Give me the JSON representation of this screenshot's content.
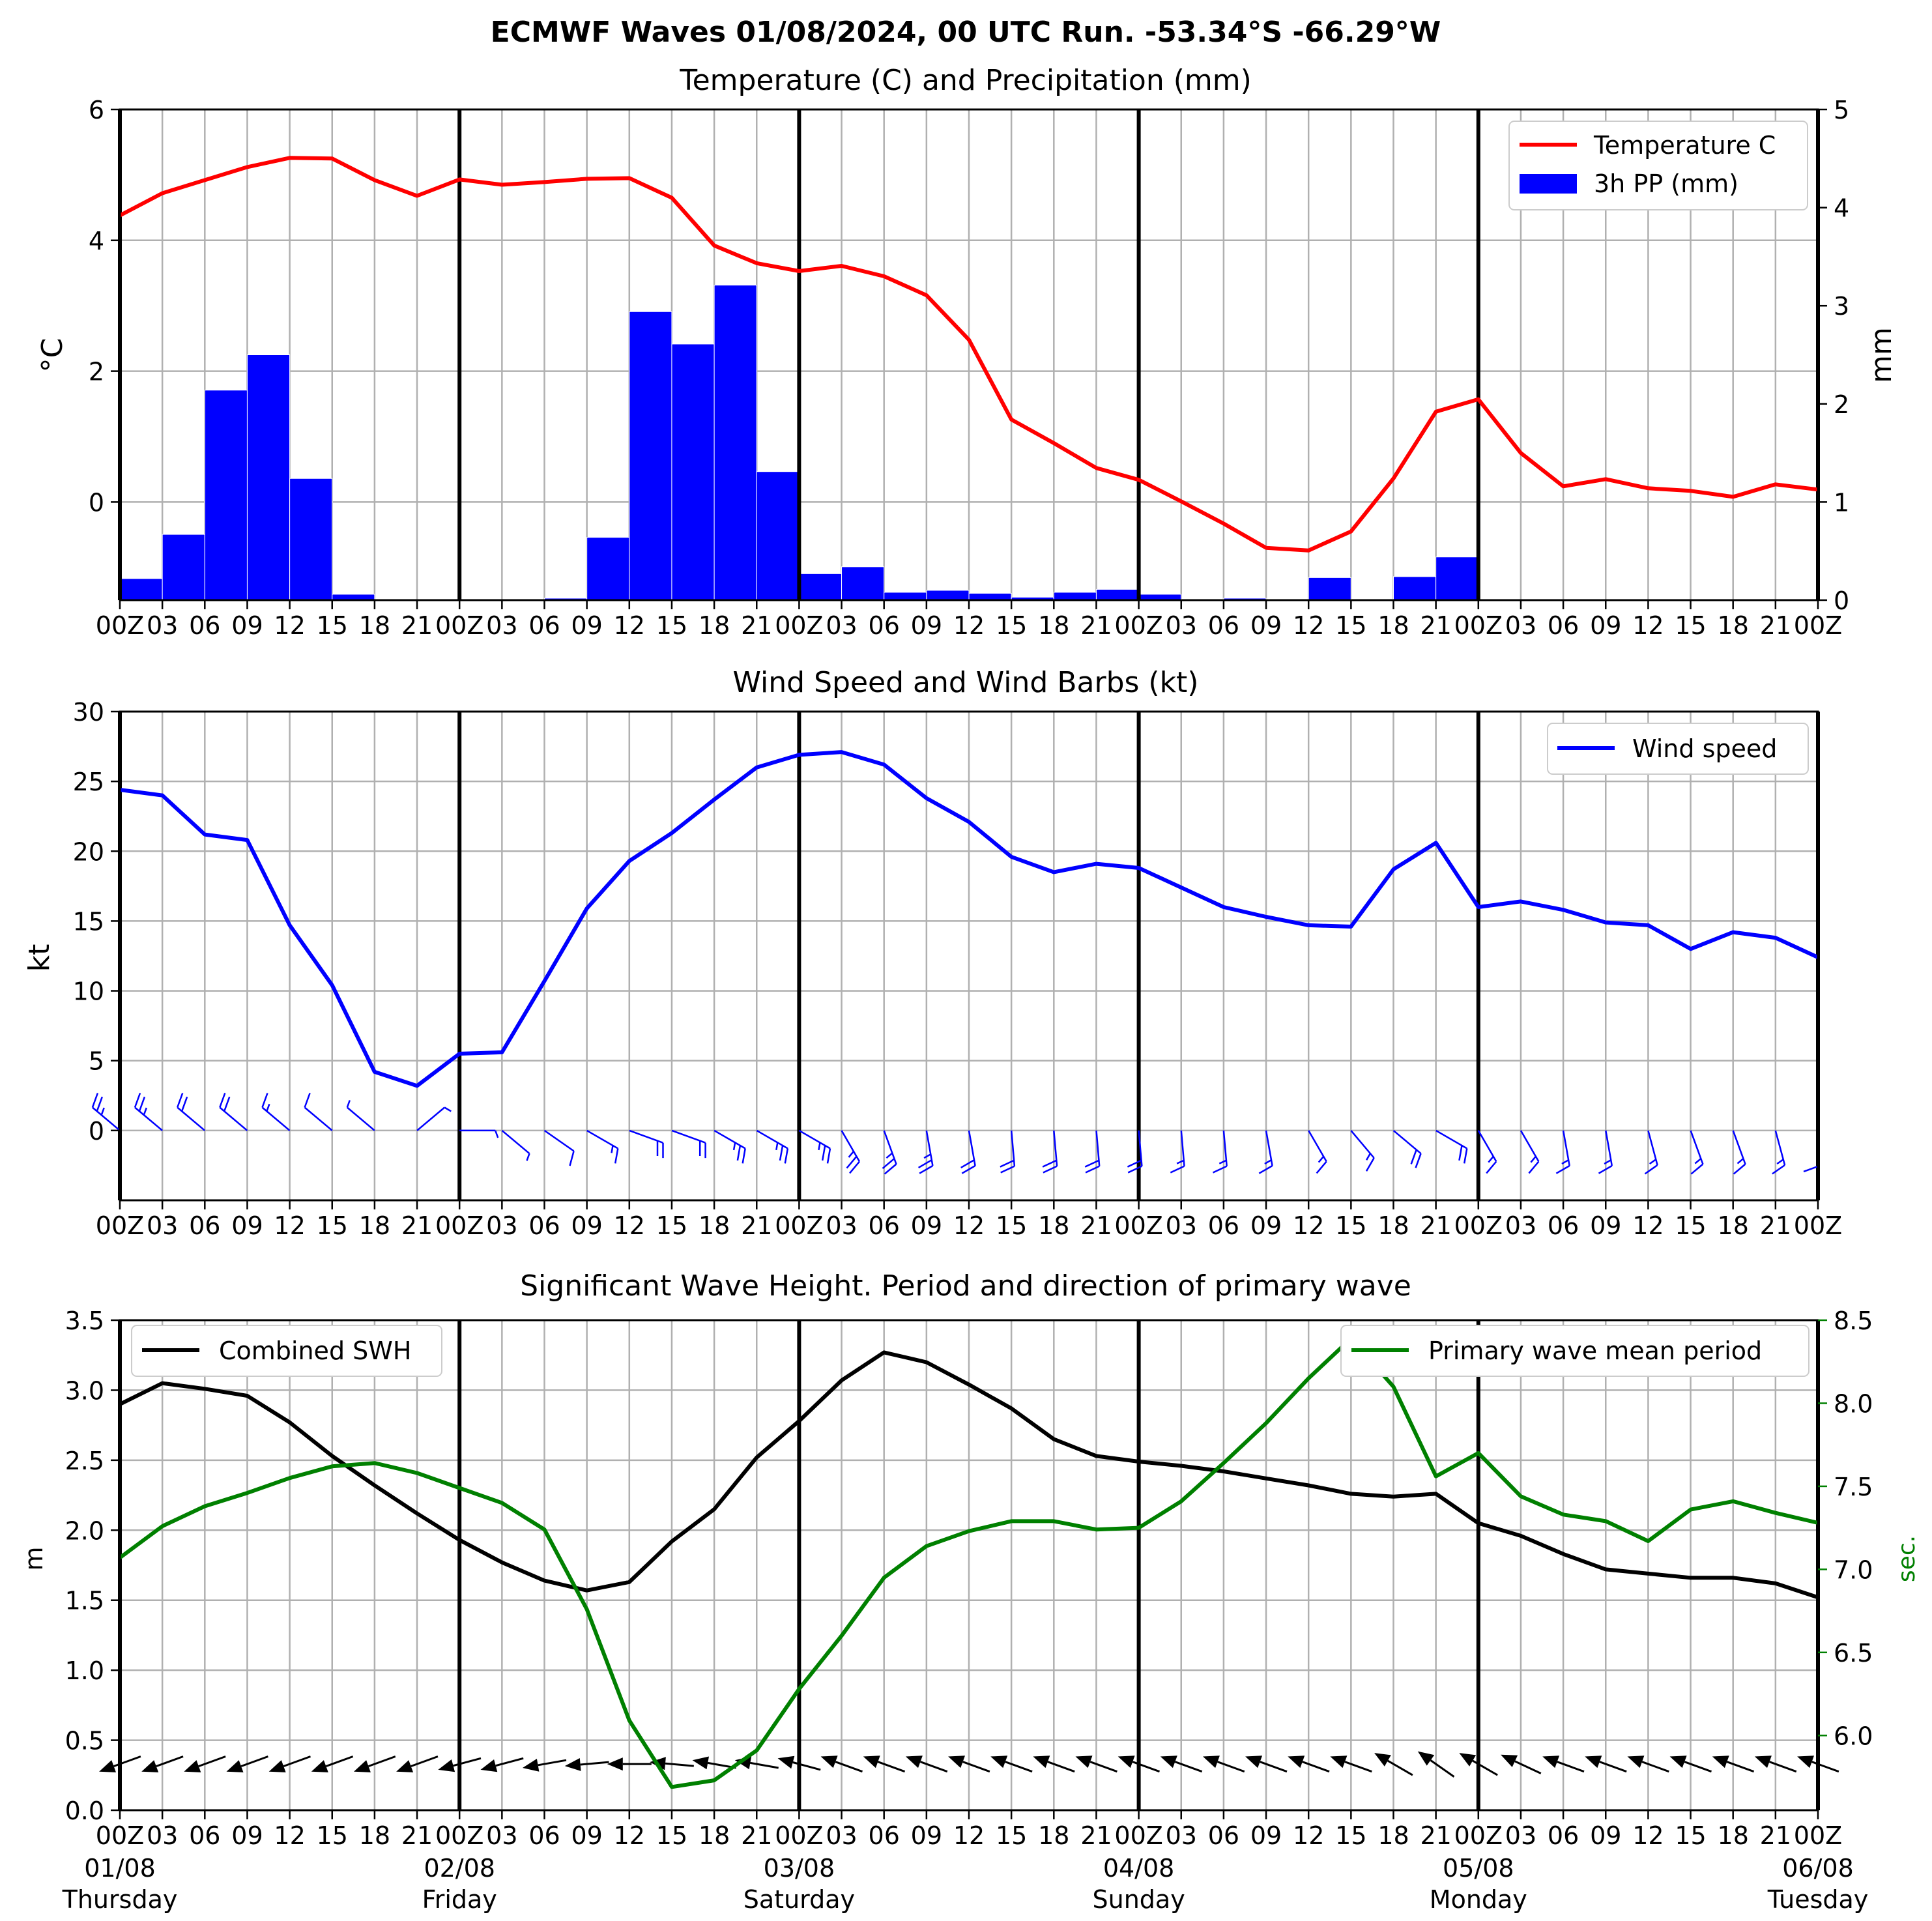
{
  "suptitle": "ECMWF Waves 01/08/2024, 00 UTC Run. -53.34°S -66.29°W",
  "time_tick_labels": [
    "00Z",
    "03",
    "06",
    "09",
    "12",
    "15",
    "18",
    "21",
    "00Z",
    "03",
    "06",
    "09",
    "12",
    "15",
    "18",
    "21",
    "00Z",
    "03",
    "06",
    "09",
    "12",
    "15",
    "18",
    "21",
    "00Z",
    "03",
    "06",
    "09",
    "12",
    "15",
    "18",
    "21",
    "00Z",
    "03",
    "06",
    "09",
    "12",
    "15",
    "18",
    "21",
    "00Z"
  ],
  "date_labels": [
    {
      "date": "01/08",
      "day": "Thursday",
      "index": 0
    },
    {
      "date": "02/08",
      "day": "Friday",
      "index": 8
    },
    {
      "date": "03/08",
      "day": "Saturday",
      "index": 16
    },
    {
      "date": "04/08",
      "day": "Sunday",
      "index": 24
    },
    {
      "date": "05/08",
      "day": "Monday",
      "index": 32
    },
    {
      "date": "06/08",
      "day": "Tuesday",
      "index": 40
    }
  ],
  "colors": {
    "temperature": "#ff0000",
    "precipitation": "#0000ff",
    "wind": "#0000ff",
    "swh": "#000000",
    "period": "#008000",
    "grid": "#b0b0b0"
  },
  "chart_data": [
    {
      "type": "line",
      "title": "Temperature (C) and Precipitation (mm)",
      "x_index": "3-hourly steps from 01/08 00Z to 06/08 00Z (41 points)",
      "ylabel": "°C",
      "ylabel_right": "mm",
      "ylim": [
        -1.5,
        6
      ],
      "yticks": [
        0,
        2,
        4,
        6
      ],
      "ylim_right": [
        0,
        5
      ],
      "yticks_right": [
        0,
        1,
        2,
        3,
        4,
        5
      ],
      "legend": "top-right",
      "grid": true,
      "series": [
        {
          "name": "Temperature C",
          "axis": "left",
          "values": [
            4.38,
            4.72,
            4.92,
            5.12,
            5.26,
            5.25,
            4.92,
            4.68,
            4.93,
            4.85,
            4.89,
            4.94,
            4.95,
            4.65,
            3.92,
            3.65,
            3.53,
            3.61,
            3.45,
            3.16,
            2.48,
            1.26,
            0.9,
            0.52,
            0.34,
            0.01,
            -0.33,
            -0.7,
            -0.74,
            -0.45,
            0.36,
            1.38,
            1.57,
            0.75,
            0.24,
            0.35,
            0.21,
            0.17,
            0.08,
            0.27,
            0.19
          ]
        },
        {
          "name": "3h PP (mm)",
          "axis": "right",
          "type": "bar",
          "values": [
            0.22,
            0.67,
            2.14,
            2.5,
            1.24,
            0.06,
            0,
            0,
            0,
            0,
            0.02,
            0.64,
            2.94,
            2.61,
            3.21,
            1.31,
            0.27,
            0.34,
            0.08,
            0.1,
            0.07,
            0.03,
            0.08,
            0.11,
            0.06,
            0.01,
            0.02,
            0,
            0.23,
            0.01,
            0.24,
            0.44,
            0,
            0,
            0,
            0,
            0,
            0,
            0,
            0
          ]
        }
      ]
    },
    {
      "type": "line",
      "title": "Wind Speed and Wind Barbs (kt)",
      "ylabel": "kt",
      "ylim": [
        -5,
        30
      ],
      "yticks": [
        0,
        5,
        10,
        15,
        20,
        25,
        30
      ],
      "legend": "top-right",
      "grid": true,
      "series": [
        {
          "name": "Wind speed",
          "values": [
            24.4,
            24.0,
            21.2,
            20.8,
            14.7,
            10.4,
            4.2,
            3.2,
            5.5,
            5.6,
            10.7,
            15.9,
            19.3,
            21.3,
            23.7,
            26.0,
            26.9,
            27.1,
            26.2,
            23.8,
            22.1,
            19.6,
            18.5,
            19.1,
            18.8,
            17.4,
            16.0,
            15.3,
            14.7,
            14.6,
            18.7,
            20.6,
            16.0,
            16.4,
            15.8,
            14.9,
            14.7,
            13.0,
            14.2,
            13.8,
            12.4
          ]
        }
      ],
      "barb_direction_deg": [
        310,
        310,
        310,
        310,
        310,
        310,
        310,
        50,
        90,
        130,
        125,
        120,
        110,
        110,
        120,
        120,
        120,
        150,
        160,
        170,
        170,
        175,
        175,
        175,
        175,
        175,
        175,
        170,
        150,
        140,
        130,
        120,
        150,
        150,
        170,
        170,
        165,
        160,
        160,
        165,
        180
      ]
    },
    {
      "type": "line",
      "title": "Significant Wave Height. Period and direction of primary wave",
      "ylabel": "m",
      "ylabel_right": "sec.",
      "ylim": [
        0,
        3.5
      ],
      "yticks": [
        0.0,
        0.5,
        1.0,
        1.5,
        2.0,
        2.5,
        3.0,
        3.5
      ],
      "ylim_right": [
        5.55,
        8.5
      ],
      "yticks_right": [
        6.0,
        6.5,
        7.0,
        7.5,
        8.0,
        8.5
      ],
      "legend": "top-left / top-right",
      "grid": true,
      "series": [
        {
          "name": "Combined SWH",
          "axis": "left",
          "values": [
            2.9,
            3.05,
            3.01,
            2.96,
            2.77,
            2.53,
            2.32,
            2.12,
            1.93,
            1.77,
            1.64,
            1.57,
            1.63,
            1.92,
            2.15,
            2.52,
            2.78,
            3.07,
            3.27,
            3.2,
            3.04,
            2.87,
            2.65,
            2.53,
            2.49,
            2.46,
            2.42,
            2.37,
            2.32,
            2.26,
            2.24,
            2.26,
            2.05,
            1.96,
            1.83,
            1.72,
            1.69,
            1.66,
            1.66,
            1.62,
            1.52
          ]
        },
        {
          "name": "Primary wave mean period",
          "axis": "right",
          "values": [
            7.07,
            7.26,
            7.38,
            7.46,
            7.55,
            7.62,
            7.64,
            7.58,
            7.49,
            7.4,
            7.24,
            6.76,
            6.09,
            5.69,
            5.73,
            5.91,
            6.28,
            6.6,
            6.95,
            7.14,
            7.23,
            7.29,
            7.29,
            7.24,
            7.25,
            7.41,
            7.64,
            7.88,
            8.15,
            8.39,
            8.1,
            7.56,
            7.7,
            7.44,
            7.33,
            7.29,
            7.17,
            7.36,
            7.41,
            7.34,
            7.28
          ]
        }
      ],
      "wave_direction_arrow_angles_deg": [
        200,
        200,
        200,
        200,
        200,
        200,
        200,
        200,
        195,
        195,
        190,
        185,
        180,
        175,
        170,
        170,
        165,
        160,
        160,
        160,
        160,
        160,
        160,
        160,
        160,
        160,
        160,
        160,
        160,
        160,
        150,
        145,
        150,
        155,
        160,
        160,
        160,
        160,
        160,
        160,
        160
      ]
    }
  ]
}
